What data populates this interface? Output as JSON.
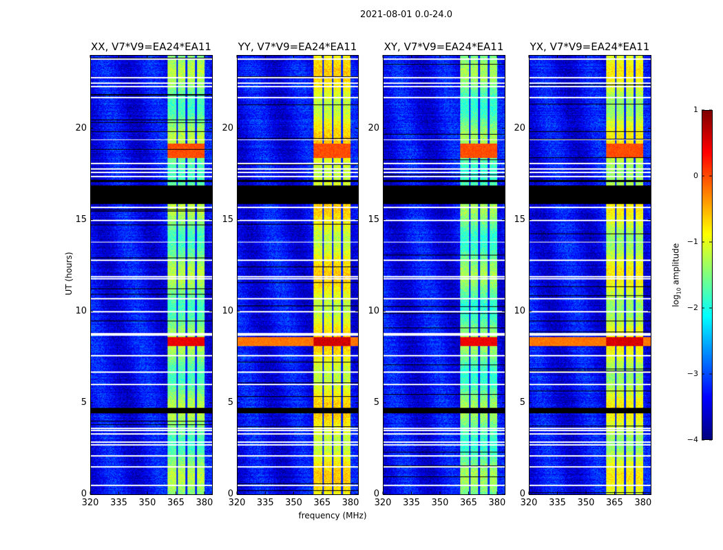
{
  "suptitle": "2021-08-01 0.0-24.0",
  "chart_data": {
    "type": "heatmap",
    "xlabel": "frequency (MHz)",
    "ylabel": "UT (hours)",
    "xlim": [
      320,
      384
    ],
    "ylim": [
      0,
      24
    ],
    "xticks": [
      "320",
      "335",
      "350",
      "365",
      "380"
    ],
    "yticks": [
      "0",
      "5",
      "10",
      "15",
      "20"
    ],
    "colorbar": {
      "label_main": "log",
      "label_sub": "10",
      "label_tail": " amplitude",
      "range": [
        -4,
        1
      ],
      "ticks": [
        "1",
        "0",
        "−1",
        "−2",
        "−3",
        "−4"
      ],
      "colormap": "jet"
    },
    "bright_band_mhz": [
      360.5,
      380
    ],
    "channel_gaps_mhz": [
      365.5,
      370.5,
      375.5
    ],
    "flagged_white_hours": [
      0.5,
      1.5,
      2.1,
      2.7,
      2.85,
      3.3,
      3.5,
      3.6,
      6.0,
      6.7,
      7.6,
      8.7,
      8.8,
      10.0,
      10.7,
      11.8,
      11.9,
      12.8,
      13.8,
      15.0,
      15.7,
      17.4,
      17.6,
      17.8,
      18.1,
      19.4,
      21.7,
      22.3,
      22.5,
      22.8,
      23.8
    ],
    "flagged_black_hours": [
      [
        4.45,
        4.75
      ],
      [
        15.9,
        16.9
      ],
      [
        17.1,
        17.2
      ]
    ],
    "events": [
      {
        "hours": [
          8.1,
          8.6
        ],
        "level": 0.6
      },
      {
        "hours": [
          18.4,
          19.2
        ],
        "level": 0.0
      }
    ],
    "panels": [
      {
        "title": "XX, V7*V9=EA24*EA11",
        "band_level": -1.5,
        "event_scale": 0.8,
        "broadband_event": false
      },
      {
        "title": "YY, V7*V9=EA24*EA11",
        "band_level": -0.9,
        "event_scale": 1.0,
        "broadband_event": true
      },
      {
        "title": "XY, V7*V9=EA24*EA11",
        "band_level": -1.6,
        "event_scale": 0.75,
        "broadband_event": false
      },
      {
        "title": "YX, V7*V9=EA24*EA11",
        "band_level": -1.1,
        "event_scale": 0.95,
        "broadband_event": true
      }
    ]
  }
}
